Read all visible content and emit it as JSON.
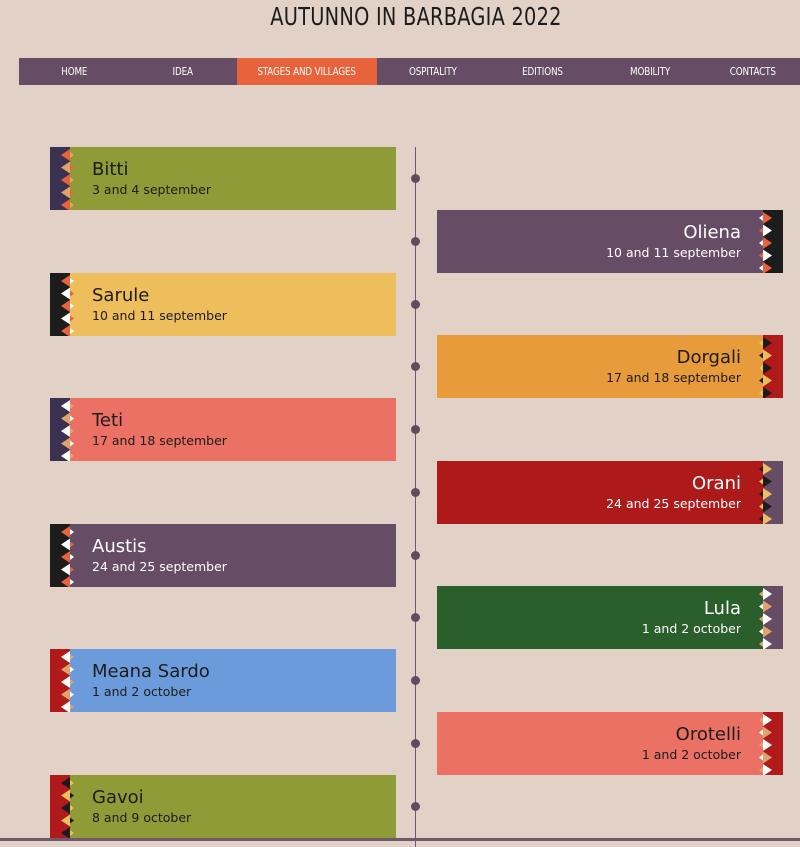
{
  "header": {
    "title": "AUTUNNO IN BARBAGIA 2022"
  },
  "nav": {
    "items": [
      {
        "label": "HOME",
        "active": false
      },
      {
        "label": "IDEA",
        "active": false
      },
      {
        "label": "STAGES AND VILLAGES",
        "active": true
      },
      {
        "label": "OSPITALITY",
        "active": false
      },
      {
        "label": "EDITIONS",
        "active": false
      },
      {
        "label": "MOBILITY",
        "active": false
      },
      {
        "label": "CONTACTS",
        "active": false
      }
    ],
    "active_color": "#e8623c",
    "bar_color": "#674c66"
  },
  "timeline": {
    "line_color": "#6f5a6c",
    "stages": [
      {
        "name": "Bitti",
        "dates": "3 and 4 september",
        "side": "left",
        "color": "#8f9b36",
        "text_color": "dark",
        "deco": [
          "#3b3150",
          "#e8623c",
          "#e2a36a"
        ]
      },
      {
        "name": "Oliena",
        "dates": "10 and 11 september",
        "side": "right",
        "color": "#674c66",
        "text_color": "light",
        "deco": [
          "#1c1c1c",
          "#e8623c",
          "#ffffff"
        ]
      },
      {
        "name": "Sarule",
        "dates": "10 and 11 september",
        "side": "left",
        "color": "#eebd5c",
        "text_color": "dark",
        "deco": [
          "#1c1c1c",
          "#e8623c",
          "#ffffff"
        ]
      },
      {
        "name": "Dorgali",
        "dates": "17 and 18 september",
        "side": "right",
        "color": "#e89b3a",
        "text_color": "dark",
        "deco": [
          "#b01a1a",
          "#1c1c1c",
          "#eebd5c"
        ]
      },
      {
        "name": "Teti",
        "dates": "17 and 18 september",
        "side": "left",
        "color": "#ea7163",
        "text_color": "dark",
        "deco": [
          "#3b3150",
          "#ffffff",
          "#e2a36a"
        ]
      },
      {
        "name": "Orani",
        "dates": "24 and 25 september",
        "side": "right",
        "color": "#ae1a1a",
        "text_color": "light",
        "deco": [
          "#674c66",
          "#eebd5c",
          "#1c1c1c"
        ]
      },
      {
        "name": "Austis",
        "dates": "24 and 25 september",
        "side": "left",
        "color": "#674c66",
        "text_color": "light",
        "deco": [
          "#1c1c1c",
          "#e8623c",
          "#ffffff"
        ]
      },
      {
        "name": "Lula",
        "dates": "1 and 2 october",
        "side": "right",
        "color": "#2a5e2a",
        "text_color": "light",
        "deco": [
          "#674c66",
          "#ffffff",
          "#e2a36a"
        ]
      },
      {
        "name": "Meana Sardo",
        "dates": "1 and 2 october",
        "side": "left",
        "color": "#6c9bdb",
        "text_color": "dark",
        "deco": [
          "#b01a1a",
          "#ffffff",
          "#e2a36a"
        ]
      },
      {
        "name": "Orotelli",
        "dates": "1 and 2 october",
        "side": "right",
        "color": "#ea7163",
        "text_color": "dark",
        "deco": [
          "#b01a1a",
          "#ffffff",
          "#e2a36a"
        ]
      },
      {
        "name": "Gavoi",
        "dates": "8 and 9 october",
        "side": "left",
        "color": "#8f9b36",
        "text_color": "dark",
        "deco": [
          "#b01a1a",
          "#1c1c1c",
          "#eebd5c"
        ]
      }
    ]
  }
}
